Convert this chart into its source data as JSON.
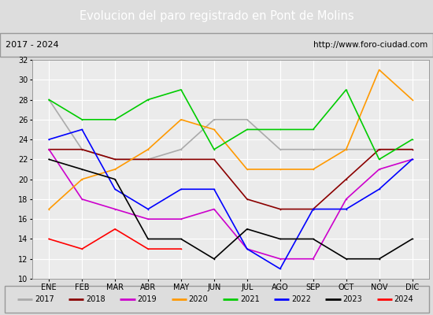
{
  "title": "Evolucion del paro registrado en Pont de Molins",
  "subtitle_left": "2017 - 2024",
  "subtitle_right": "http://www.foro-ciudad.com",
  "xlabel_months": [
    "ENE",
    "FEB",
    "MAR",
    "ABR",
    "MAY",
    "JUN",
    "JUL",
    "AGO",
    "SEP",
    "OCT",
    "NOV",
    "DIC"
  ],
  "ylim": [
    10,
    32
  ],
  "yticks": [
    10,
    12,
    14,
    16,
    18,
    20,
    22,
    24,
    26,
    28,
    30,
    32
  ],
  "series": {
    "2017": {
      "values": [
        28,
        23,
        22,
        22,
        23,
        26,
        26,
        23,
        23,
        23,
        23,
        23
      ],
      "color": "#aaaaaa"
    },
    "2018": {
      "values": [
        23,
        23,
        22,
        22,
        22,
        22,
        18,
        17,
        17,
        20,
        23,
        23
      ],
      "color": "#8b0000"
    },
    "2019": {
      "values": [
        23,
        18,
        17,
        16,
        16,
        17,
        13,
        12,
        12,
        18,
        21,
        22
      ],
      "color": "#cc00cc"
    },
    "2020": {
      "values": [
        17,
        20,
        21,
        23,
        26,
        25,
        21,
        21,
        21,
        23,
        31,
        28
      ],
      "color": "#ff9900"
    },
    "2021": {
      "values": [
        28,
        26,
        26,
        28,
        29,
        23,
        25,
        25,
        25,
        29,
        22,
        24
      ],
      "color": "#00cc00"
    },
    "2022": {
      "values": [
        24,
        25,
        19,
        17,
        19,
        19,
        13,
        11,
        17,
        17,
        19,
        22
      ],
      "color": "#0000ff"
    },
    "2023": {
      "values": [
        22,
        21,
        20,
        14,
        14,
        12,
        15,
        14,
        14,
        12,
        12,
        14
      ],
      "color": "#000000"
    },
    "2024": {
      "values": [
        14,
        13,
        15,
        13,
        13,
        null,
        null,
        null,
        null,
        null,
        null,
        null
      ],
      "color": "#ff0000"
    }
  },
  "background_color": "#dddddd",
  "plot_bg_color": "#ebebeb",
  "title_bg_color": "#4a7ab5",
  "title_color": "#ffffff",
  "grid_color": "#ffffff",
  "legend_bg_color": "#dddddd",
  "subtitle_bg_color": "#dddddd"
}
